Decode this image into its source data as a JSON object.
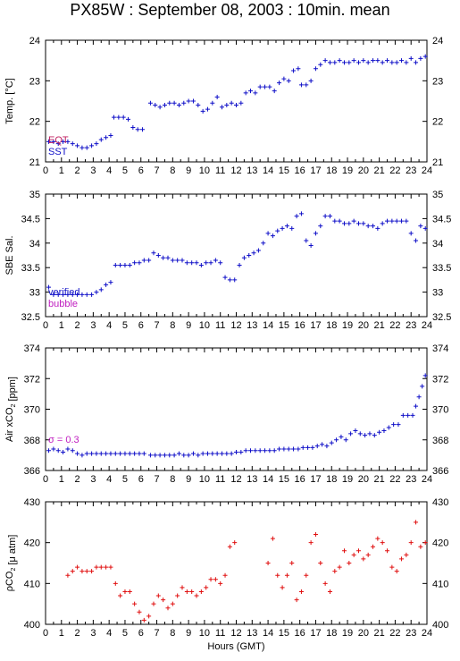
{
  "title": "PX85W : September 08, 2003 : 10min. mean",
  "colors": {
    "blue": "#1010c8",
    "red": "#e01010",
    "magenta": "#c020c0",
    "axis": "#000000"
  },
  "chart_data": [
    {
      "type": "scatter",
      "ylabel": "Temp. [°C]",
      "xlim": [
        0,
        24
      ],
      "ylim": [
        21,
        24
      ],
      "yticks": [
        21,
        22,
        23,
        24
      ],
      "xticks": [
        "0",
        "1",
        "2",
        "3",
        "4",
        "5",
        "6",
        "7",
        "8",
        "9",
        "10",
        "11",
        "12",
        "13",
        "14",
        "15",
        "16",
        "17",
        "18",
        "19",
        "20",
        "21",
        "22",
        "23",
        "24"
      ],
      "legend": [
        {
          "label": "EQT",
          "color": "#c02060"
        },
        {
          "label": "SST",
          "color": "#1010c8"
        }
      ],
      "series": [
        {
          "name": "SST",
          "color": "#1010c8",
          "x": [
            0.2,
            0.5,
            0.8,
            1.1,
            1.4,
            1.7,
            2.0,
            2.3,
            2.6,
            2.9,
            3.2,
            3.5,
            3.8,
            4.1,
            4.3,
            4.6,
            4.9,
            5.2,
            5.5,
            5.8,
            6.1,
            6.6,
            6.9,
            7.2,
            7.5,
            7.8,
            8.1,
            8.4,
            8.7,
            9.0,
            9.3,
            9.6,
            9.9,
            10.2,
            10.5,
            10.8,
            11.1,
            11.4,
            11.7,
            12.0,
            12.3,
            12.6,
            12.9,
            13.2,
            13.5,
            13.8,
            14.1,
            14.4,
            14.7,
            15.0,
            15.3,
            15.6,
            15.9,
            16.1,
            16.4,
            16.7,
            17.0,
            17.3,
            17.6,
            17.9,
            18.2,
            18.5,
            18.8,
            19.1,
            19.4,
            19.7,
            20.0,
            20.3,
            20.6,
            20.9,
            21.2,
            21.5,
            21.8,
            22.1,
            22.4,
            22.7,
            23.0,
            23.3,
            23.6,
            23.9
          ],
          "y": [
            21.5,
            21.5,
            21.45,
            21.5,
            21.5,
            21.45,
            21.4,
            21.35,
            21.35,
            21.4,
            21.45,
            21.55,
            21.6,
            21.65,
            22.1,
            22.1,
            22.1,
            22.05,
            21.85,
            21.8,
            21.8,
            22.45,
            22.4,
            22.35,
            22.4,
            22.45,
            22.45,
            22.4,
            22.45,
            22.5,
            22.5,
            22.4,
            22.25,
            22.3,
            22.45,
            22.6,
            22.35,
            22.4,
            22.45,
            22.4,
            22.45,
            22.7,
            22.75,
            22.7,
            22.85,
            22.85,
            22.85,
            22.75,
            22.95,
            23.05,
            23.0,
            23.25,
            23.3,
            22.9,
            22.9,
            23.0,
            23.3,
            23.4,
            23.5,
            23.45,
            23.45,
            23.5,
            23.45,
            23.45,
            23.5,
            23.45,
            23.5,
            23.45,
            23.5,
            23.5,
            23.45,
            23.5,
            23.45,
            23.45,
            23.5,
            23.45,
            23.55,
            23.45,
            23.55,
            23.6
          ]
        }
      ]
    },
    {
      "type": "scatter",
      "ylabel": "SBE Sal.",
      "xlim": [
        0,
        24
      ],
      "ylim": [
        32.5,
        35
      ],
      "yticks": [
        32.5,
        33,
        33.5,
        34,
        34.5,
        35
      ],
      "xticks": [
        "0",
        "1",
        "2",
        "3",
        "4",
        "5",
        "6",
        "7",
        "8",
        "9",
        "10",
        "11",
        "12",
        "13",
        "14",
        "15",
        "16",
        "17",
        "18",
        "19",
        "20",
        "21",
        "22",
        "23",
        "24"
      ],
      "legend": [
        {
          "label": "verified",
          "color": "#1010c8"
        },
        {
          "label": "bubble",
          "color": "#c020c0"
        }
      ],
      "series": [
        {
          "name": "verified",
          "color": "#1010c8",
          "x": [
            0.2,
            0.5,
            0.8,
            1.1,
            1.4,
            1.7,
            2.0,
            2.3,
            2.6,
            2.9,
            3.2,
            3.5,
            3.8,
            4.1,
            4.4,
            4.7,
            5.0,
            5.3,
            5.6,
            5.9,
            6.2,
            6.5,
            6.8,
            7.1,
            7.4,
            7.7,
            8.0,
            8.3,
            8.6,
            8.9,
            9.2,
            9.5,
            9.8,
            10.1,
            10.4,
            10.7,
            11.0,
            11.3,
            11.6,
            11.9,
            12.2,
            12.5,
            12.8,
            13.1,
            13.4,
            13.7,
            14.0,
            14.3,
            14.6,
            14.9,
            15.2,
            15.5,
            15.8,
            16.1,
            16.4,
            16.7,
            17.0,
            17.3,
            17.6,
            17.9,
            18.2,
            18.5,
            18.8,
            19.1,
            19.4,
            19.7,
            20.0,
            20.3,
            20.6,
            20.9,
            21.2,
            21.5,
            21.8,
            22.1,
            22.4,
            22.7,
            23.0,
            23.3,
            23.6,
            23.9
          ],
          "y": [
            33.1,
            32.95,
            32.95,
            32.95,
            32.95,
            32.95,
            32.95,
            32.95,
            32.95,
            32.95,
            33.0,
            33.05,
            33.15,
            33.2,
            33.55,
            33.55,
            33.55,
            33.55,
            33.6,
            33.6,
            33.65,
            33.65,
            33.8,
            33.75,
            33.7,
            33.7,
            33.65,
            33.65,
            33.65,
            33.6,
            33.6,
            33.6,
            33.55,
            33.6,
            33.6,
            33.65,
            33.6,
            33.3,
            33.25,
            33.25,
            33.55,
            33.7,
            33.75,
            33.8,
            33.85,
            34.0,
            34.2,
            34.15,
            34.25,
            34.3,
            34.35,
            34.3,
            34.55,
            34.6,
            34.05,
            33.95,
            34.2,
            34.35,
            34.55,
            34.55,
            34.45,
            34.45,
            34.4,
            34.4,
            34.45,
            34.4,
            34.4,
            34.35,
            34.35,
            34.3,
            34.4,
            34.45,
            34.45,
            34.45,
            34.45,
            34.45,
            34.2,
            34.05,
            34.35,
            34.3
          ]
        }
      ]
    },
    {
      "type": "scatter",
      "ylabel": "Air xCO2 [ppm]",
      "xlim": [
        0,
        24
      ],
      "ylim": [
        366,
        374
      ],
      "yticks": [
        366,
        368,
        370,
        372,
        374
      ],
      "xticks": [
        "0",
        "1",
        "2",
        "3",
        "4",
        "5",
        "6",
        "7",
        "8",
        "9",
        "10",
        "11",
        "12",
        "13",
        "14",
        "15",
        "16",
        "17",
        "18",
        "19",
        "20",
        "21",
        "22",
        "23",
        "24"
      ],
      "annotation": {
        "text": "σ = 0.3",
        "color": "#c020c0"
      },
      "series": [
        {
          "name": "",
          "color": "#1010c8",
          "x": [
            0.2,
            0.5,
            0.8,
            1.1,
            1.4,
            1.7,
            2.0,
            2.3,
            2.6,
            2.9,
            3.2,
            3.5,
            3.8,
            4.1,
            4.4,
            4.7,
            5.0,
            5.3,
            5.6,
            5.9,
            6.2,
            6.6,
            6.9,
            7.2,
            7.5,
            7.8,
            8.1,
            8.4,
            8.7,
            9.0,
            9.3,
            9.6,
            9.9,
            10.2,
            10.5,
            10.8,
            11.1,
            11.4,
            11.7,
            12.0,
            12.3,
            12.6,
            12.9,
            13.2,
            13.5,
            13.8,
            14.1,
            14.4,
            14.7,
            15.0,
            15.3,
            15.6,
            15.9,
            16.2,
            16.5,
            16.8,
            17.1,
            17.4,
            17.7,
            18.0,
            18.3,
            18.6,
            18.9,
            19.2,
            19.5,
            19.8,
            20.1,
            20.4,
            20.7,
            21.0,
            21.3,
            21.6,
            21.9,
            22.2,
            22.5,
            22.8,
            23.1,
            23.3,
            23.5,
            23.7,
            23.9
          ],
          "y": [
            367.3,
            367.4,
            367.3,
            367.2,
            367.4,
            367.3,
            367.1,
            367.0,
            367.1,
            367.1,
            367.1,
            367.1,
            367.1,
            367.1,
            367.1,
            367.1,
            367.1,
            367.1,
            367.1,
            367.1,
            367.1,
            367.0,
            367.0,
            367.0,
            367.0,
            367.0,
            367.0,
            367.1,
            367.0,
            367.0,
            367.1,
            367.0,
            367.1,
            367.1,
            367.1,
            367.1,
            367.1,
            367.1,
            367.1,
            367.2,
            367.2,
            367.3,
            367.3,
            367.3,
            367.3,
            367.3,
            367.3,
            367.3,
            367.4,
            367.4,
            367.4,
            367.4,
            367.4,
            367.5,
            367.5,
            367.5,
            367.6,
            367.7,
            367.6,
            367.8,
            368.0,
            368.2,
            368.0,
            368.4,
            368.6,
            368.4,
            368.3,
            368.4,
            368.3,
            368.5,
            368.6,
            368.8,
            369.0,
            369.0,
            369.6,
            369.6,
            369.6,
            370.2,
            370.8,
            371.5,
            372.2
          ]
        }
      ]
    },
    {
      "type": "scatter",
      "ylabel": "pCO2 [μ atm]",
      "xlabel": "Hours (GMT)",
      "xlim": [
        0,
        24
      ],
      "ylim": [
        400,
        430
      ],
      "yticks": [
        400,
        410,
        420,
        430
      ],
      "xticks": [
        "0",
        "1",
        "2",
        "3",
        "4",
        "5",
        "6",
        "7",
        "8",
        "9",
        "10",
        "11",
        "12",
        "13",
        "14",
        "15",
        "16",
        "17",
        "18",
        "19",
        "20",
        "21",
        "22",
        "23",
        "24"
      ],
      "series": [
        {
          "name": "",
          "color": "#e01010",
          "x": [
            1.4,
            1.7,
            2.0,
            2.3,
            2.6,
            2.9,
            3.2,
            3.5,
            3.8,
            4.1,
            4.4,
            4.7,
            5.0,
            5.3,
            5.6,
            5.9,
            6.2,
            6.5,
            6.8,
            7.1,
            7.4,
            7.7,
            8.0,
            8.3,
            8.6,
            8.9,
            9.2,
            9.5,
            9.8,
            10.1,
            10.4,
            10.7,
            11.0,
            11.3,
            11.6,
            11.9,
            14.0,
            14.3,
            14.6,
            14.9,
            15.2,
            15.5,
            15.8,
            16.1,
            16.4,
            16.7,
            17.0,
            17.3,
            17.6,
            17.9,
            18.2,
            18.5,
            18.8,
            19.1,
            19.4,
            19.7,
            20.0,
            20.3,
            20.6,
            20.9,
            21.2,
            21.5,
            21.8,
            22.1,
            22.4,
            22.7,
            23.0,
            23.3,
            23.6,
            23.9
          ],
          "y": [
            412,
            413,
            414,
            413,
            413,
            413,
            414,
            414,
            414,
            414,
            410,
            407,
            408,
            408,
            405,
            403,
            401,
            402,
            405,
            407,
            406,
            404,
            405,
            407,
            409,
            408,
            408,
            407,
            408,
            409,
            411,
            411,
            410,
            412,
            419,
            420,
            415,
            421,
            412,
            409,
            412,
            415,
            406,
            408,
            412,
            420,
            422,
            415,
            410,
            408,
            413,
            414,
            418,
            415,
            417,
            418,
            416,
            417,
            419,
            421,
            420,
            418,
            414,
            413,
            416,
            417,
            420,
            425,
            419,
            420
          ]
        }
      ]
    }
  ]
}
